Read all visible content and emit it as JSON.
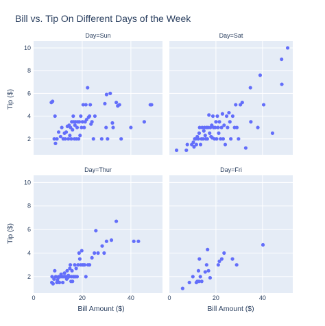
{
  "chart_data": {
    "type": "scatter",
    "title": "Bill vs. Tip On Different Days of the Week",
    "xlabel": "Bill Amount ($)",
    "ylabel": "Tip ($)",
    "xlim": [
      0,
      53
    ],
    "ylim": [
      0.6,
      10.6
    ],
    "xticks": [
      0,
      20,
      40
    ],
    "yticks": [
      2,
      4,
      6,
      8,
      10
    ],
    "grid": true,
    "marker_color": "#636efa",
    "panel_bg": "#e5ecf6",
    "grid_color": "#ffffff",
    "text_color": "#2a3f5f",
    "facets": [
      {
        "title": "Day=Sun",
        "points": [
          [
            7.3,
            5.2
          ],
          [
            8.8,
            4.0
          ],
          [
            8.5,
            2.0
          ],
          [
            9.0,
            1.6
          ],
          [
            9.6,
            2.0
          ],
          [
            10.3,
            2.6
          ],
          [
            11.1,
            2.2
          ],
          [
            11.6,
            3.0
          ],
          [
            12.2,
            2.0
          ],
          [
            12.7,
            2.5
          ],
          [
            13.0,
            2.0
          ],
          [
            13.4,
            2.6
          ],
          [
            13.9,
            3.1
          ],
          [
            14.3,
            2.0
          ],
          [
            14.6,
            3.2
          ],
          [
            14.9,
            2.3
          ],
          [
            15.2,
            3.0
          ],
          [
            15.5,
            2.0
          ],
          [
            15.7,
            3.5
          ],
          [
            16.0,
            2.8
          ],
          [
            16.3,
            4.0
          ],
          [
            16.5,
            3.5
          ],
          [
            16.8,
            2.0
          ],
          [
            17.0,
            3.2
          ],
          [
            17.3,
            3.5
          ],
          [
            17.6,
            2.0
          ],
          [
            17.9,
            3.0
          ],
          [
            18.2,
            3.5
          ],
          [
            18.5,
            2.0
          ],
          [
            18.8,
            3.5
          ],
          [
            19.1,
            2.3
          ],
          [
            19.4,
            4.0
          ],
          [
            19.7,
            3.0
          ],
          [
            20.1,
            3.5
          ],
          [
            20.4,
            5.0
          ],
          [
            20.8,
            3.0
          ],
          [
            21.2,
            3.5
          ],
          [
            21.5,
            5.0
          ],
          [
            21.8,
            3.7
          ],
          [
            22.2,
            6.5
          ],
          [
            22.6,
            3.9
          ],
          [
            23.0,
            4.0
          ],
          [
            23.3,
            5.0
          ],
          [
            23.6,
            3.3
          ],
          [
            24.0,
            3.5
          ],
          [
            24.6,
            2.0
          ],
          [
            25.2,
            4.0
          ],
          [
            28.0,
            2.0
          ],
          [
            29.3,
            5.1
          ],
          [
            29.8,
            3.0
          ],
          [
            30.0,
            5.9
          ],
          [
            30.4,
            2.0
          ],
          [
            31.5,
            6.0
          ],
          [
            32.4,
            3.4
          ],
          [
            32.7,
            3.0
          ],
          [
            34.0,
            5.2
          ],
          [
            34.6,
            4.9
          ],
          [
            35.3,
            5.0
          ],
          [
            36.0,
            2.0
          ],
          [
            40.0,
            3.0
          ],
          [
            45.5,
            3.5
          ],
          [
            48.0,
            5.0
          ],
          [
            48.5,
            5.0
          ],
          [
            7.8,
            5.3
          ]
        ]
      },
      {
        "title": "Day=Sat",
        "points": [
          [
            3.1,
            1.0
          ],
          [
            7.3,
            1.0
          ],
          [
            7.7,
            1.5
          ],
          [
            9.6,
            1.5
          ],
          [
            10.3,
            1.7
          ],
          [
            10.6,
            1.3
          ],
          [
            10.9,
            2.0
          ],
          [
            11.3,
            2.0
          ],
          [
            11.6,
            1.5
          ],
          [
            12.0,
            2.2
          ],
          [
            12.4,
            2.0
          ],
          [
            12.8,
            2.5
          ],
          [
            13.0,
            3.0
          ],
          [
            13.4,
            1.5
          ],
          [
            13.8,
            2.0
          ],
          [
            14.1,
            3.0
          ],
          [
            14.5,
            2.0
          ],
          [
            14.8,
            2.7
          ],
          [
            15.1,
            3.0
          ],
          [
            15.4,
            2.3
          ],
          [
            15.7,
            2.0
          ],
          [
            16.0,
            3.0
          ],
          [
            16.3,
            2.0
          ],
          [
            16.6,
            3.0
          ],
          [
            17.0,
            4.1
          ],
          [
            17.3,
            2.5
          ],
          [
            17.6,
            3.0
          ],
          [
            17.9,
            2.2
          ],
          [
            18.2,
            3.2
          ],
          [
            18.4,
            2.1
          ],
          [
            18.7,
            4.0
          ],
          [
            19.0,
            3.0
          ],
          [
            19.4,
            2.0
          ],
          [
            19.7,
            3.0
          ],
          [
            20.0,
            3.5
          ],
          [
            20.3,
            2.0
          ],
          [
            20.6,
            4.0
          ],
          [
            20.9,
            3.0
          ],
          [
            21.2,
            2.5
          ],
          [
            21.5,
            3.5
          ],
          [
            22.0,
            2.0
          ],
          [
            22.4,
            3.0
          ],
          [
            22.8,
            4.2
          ],
          [
            23.1,
            2.0
          ],
          [
            23.5,
            3.2
          ],
          [
            24.0,
            1.5
          ],
          [
            24.6,
            4.0
          ],
          [
            25.0,
            3.0
          ],
          [
            25.6,
            4.3
          ],
          [
            26.0,
            3.5
          ],
          [
            26.4,
            2.0
          ],
          [
            27.2,
            4.0
          ],
          [
            28.0,
            3.0
          ],
          [
            28.5,
            5.0
          ],
          [
            29.0,
            3.0
          ],
          [
            29.7,
            2.0
          ],
          [
            30.5,
            5.0
          ],
          [
            31.3,
            5.2
          ],
          [
            32.8,
            1.2
          ],
          [
            35.0,
            3.5
          ],
          [
            38.0,
            3.0
          ],
          [
            39.0,
            7.6
          ],
          [
            40.5,
            5.0
          ],
          [
            44.3,
            2.5
          ],
          [
            48.2,
            9.0
          ],
          [
            48.3,
            6.8
          ],
          [
            50.8,
            10.0
          ],
          [
            34.8,
            6.5
          ]
        ]
      },
      {
        "title": "Day=Thur",
        "points": [
          [
            7.5,
            1.5
          ],
          [
            7.6,
            2.0
          ],
          [
            8.0,
            1.4
          ],
          [
            8.4,
            1.8
          ],
          [
            8.7,
            2.5
          ],
          [
            9.1,
            2.0
          ],
          [
            9.6,
            1.5
          ],
          [
            10.1,
            1.9
          ],
          [
            10.3,
            2.0
          ],
          [
            10.6,
            1.5
          ],
          [
            11.0,
            2.0
          ],
          [
            11.3,
            2.2
          ],
          [
            11.7,
            2.0
          ],
          [
            12.0,
            1.5
          ],
          [
            12.3,
            2.0
          ],
          [
            12.7,
            2.3
          ],
          [
            13.0,
            2.0
          ],
          [
            13.4,
            2.0
          ],
          [
            13.8,
            2.5
          ],
          [
            14.0,
            1.9
          ],
          [
            14.3,
            2.1
          ],
          [
            14.5,
            2.0
          ],
          [
            14.9,
            2.7
          ],
          [
            15.1,
            3.0
          ],
          [
            15.5,
            2.0
          ],
          [
            15.8,
            2.5
          ],
          [
            16.0,
            1.6
          ],
          [
            16.3,
            2.0
          ],
          [
            16.6,
            2.0
          ],
          [
            16.9,
            3.0
          ],
          [
            17.2,
            2.0
          ],
          [
            17.5,
            2.7
          ],
          [
            17.9,
            2.0
          ],
          [
            18.3,
            3.0
          ],
          [
            18.7,
            4.0
          ],
          [
            19.0,
            3.5
          ],
          [
            19.4,
            3.0
          ],
          [
            19.8,
            4.2
          ],
          [
            20.1,
            3.0
          ],
          [
            20.5,
            3.0
          ],
          [
            21.0,
            3.0
          ],
          [
            21.5,
            2.0
          ],
          [
            22.4,
            3.0
          ],
          [
            23.0,
            3.0
          ],
          [
            24.0,
            3.6
          ],
          [
            25.0,
            4.0
          ],
          [
            25.6,
            5.9
          ],
          [
            26.5,
            4.0
          ],
          [
            29.0,
            4.0
          ],
          [
            30.0,
            5.0
          ],
          [
            32.0,
            5.1
          ],
          [
            34.0,
            6.7
          ],
          [
            41.2,
            5.0
          ],
          [
            43.1,
            5.0
          ],
          [
            28.2,
            4.6
          ],
          [
            15.4,
            1.6
          ],
          [
            9.8,
            1.7
          ],
          [
            13.6,
            1.8
          ]
        ]
      },
      {
        "title": "Day=Fri",
        "points": [
          [
            5.7,
            1.0
          ],
          [
            8.6,
            1.5
          ],
          [
            10.1,
            2.0
          ],
          [
            11.6,
            1.5
          ],
          [
            12.0,
            1.6
          ],
          [
            12.5,
            2.5
          ],
          [
            12.9,
            3.5
          ],
          [
            13.3,
            2.0
          ],
          [
            13.9,
            1.6
          ],
          [
            15.4,
            2.4
          ],
          [
            16.0,
            3.0
          ],
          [
            16.4,
            4.3
          ],
          [
            16.8,
            2.5
          ],
          [
            17.5,
            1.9
          ],
          [
            21.0,
            3.0
          ],
          [
            21.5,
            3.3
          ],
          [
            22.5,
            3.5
          ],
          [
            23.5,
            4.0
          ],
          [
            27.1,
            3.5
          ],
          [
            28.9,
            3.0
          ],
          [
            40.2,
            4.7
          ],
          [
            12.7,
            1.6
          ]
        ]
      }
    ]
  }
}
